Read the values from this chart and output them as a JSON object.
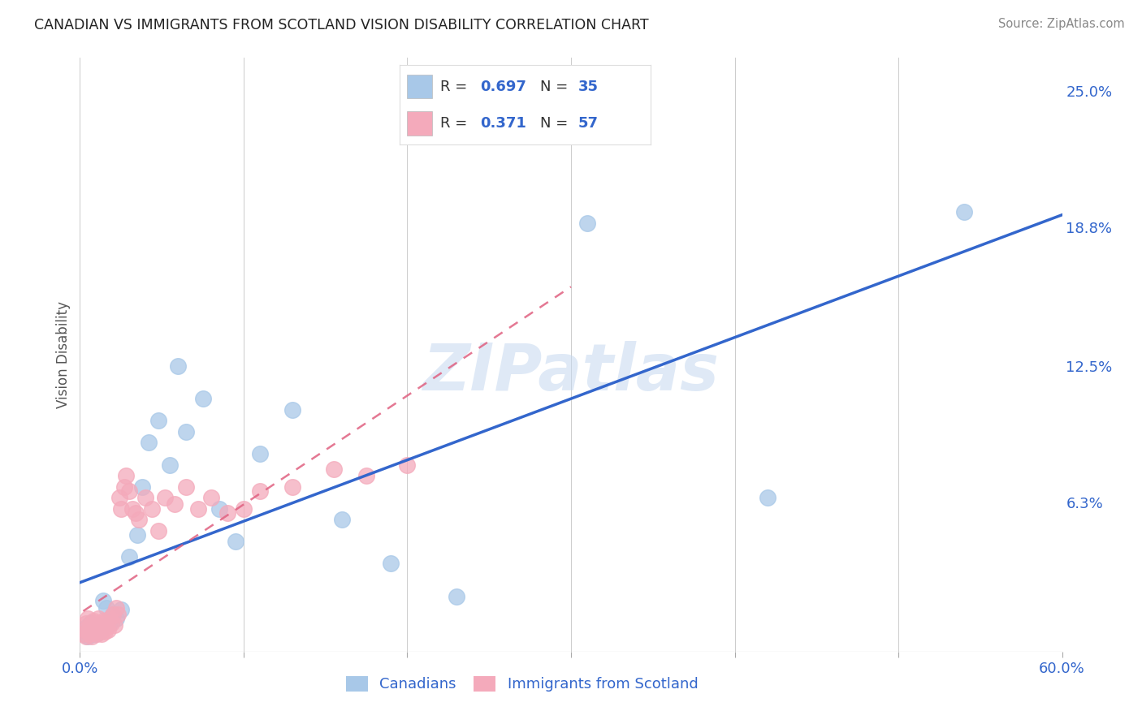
{
  "title": "CANADIAN VS IMMIGRANTS FROM SCOTLAND VISION DISABILITY CORRELATION CHART",
  "source": "Source: ZipAtlas.com",
  "ylabel": "Vision Disability",
  "watermark": "ZIPatlas",
  "xlim": [
    0.0,
    0.6
  ],
  "ylim": [
    -0.005,
    0.265
  ],
  "ytick_values": [
    0.0,
    0.063,
    0.125,
    0.188,
    0.25
  ],
  "ytick_labels": [
    "",
    "6.3%",
    "12.5%",
    "18.8%",
    "25.0%"
  ],
  "xtick_positions": [
    0.0,
    0.1,
    0.2,
    0.3,
    0.4,
    0.5,
    0.6
  ],
  "xticklabels": [
    "0.0%",
    "",
    "",
    "",
    "",
    "",
    "60.0%"
  ],
  "canadians_R": 0.697,
  "canadians_N": 35,
  "scotland_R": 0.371,
  "scotland_N": 57,
  "canadians_color": "#a8c8e8",
  "scotland_color": "#f4aabb",
  "canadians_line_color": "#3366cc",
  "scotland_line_color": "#e06080",
  "legend_text_color": "#3366cc",
  "canadians_x": [
    0.003,
    0.004,
    0.005,
    0.006,
    0.007,
    0.008,
    0.009,
    0.01,
    0.011,
    0.012,
    0.014,
    0.016,
    0.018,
    0.02,
    0.022,
    0.025,
    0.03,
    0.035,
    0.038,
    0.042,
    0.048,
    0.055,
    0.06,
    0.065,
    0.075,
    0.085,
    0.095,
    0.11,
    0.13,
    0.16,
    0.19,
    0.23,
    0.31,
    0.42,
    0.54
  ],
  "canadians_y": [
    0.003,
    0.006,
    0.002,
    0.008,
    0.004,
    0.005,
    0.003,
    0.007,
    0.005,
    0.004,
    0.018,
    0.015,
    0.008,
    0.012,
    0.01,
    0.014,
    0.038,
    0.048,
    0.07,
    0.09,
    0.1,
    0.08,
    0.125,
    0.095,
    0.11,
    0.06,
    0.045,
    0.085,
    0.105,
    0.055,
    0.035,
    0.02,
    0.19,
    0.065,
    0.195
  ],
  "scotland_x": [
    0.002,
    0.003,
    0.004,
    0.004,
    0.005,
    0.005,
    0.006,
    0.006,
    0.007,
    0.007,
    0.008,
    0.008,
    0.009,
    0.009,
    0.01,
    0.01,
    0.011,
    0.011,
    0.012,
    0.012,
    0.013,
    0.013,
    0.014,
    0.014,
    0.015,
    0.015,
    0.016,
    0.017,
    0.018,
    0.019,
    0.02,
    0.021,
    0.022,
    0.023,
    0.024,
    0.025,
    0.027,
    0.028,
    0.03,
    0.032,
    0.034,
    0.036,
    0.04,
    0.044,
    0.048,
    0.052,
    0.058,
    0.065,
    0.072,
    0.08,
    0.09,
    0.1,
    0.11,
    0.13,
    0.155,
    0.175,
    0.2
  ],
  "scotland_y": [
    0.003,
    0.005,
    0.002,
    0.008,
    0.004,
    0.01,
    0.003,
    0.007,
    0.005,
    0.002,
    0.006,
    0.009,
    0.004,
    0.008,
    0.003,
    0.007,
    0.005,
    0.01,
    0.004,
    0.008,
    0.003,
    0.006,
    0.005,
    0.009,
    0.004,
    0.008,
    0.006,
    0.005,
    0.01,
    0.008,
    0.012,
    0.007,
    0.015,
    0.012,
    0.065,
    0.06,
    0.07,
    0.075,
    0.068,
    0.06,
    0.058,
    0.055,
    0.065,
    0.06,
    0.05,
    0.065,
    0.062,
    0.07,
    0.06,
    0.065,
    0.058,
    0.06,
    0.068,
    0.07,
    0.078,
    0.075,
    0.08
  ],
  "bottom_legend_labels": [
    "Canadians",
    "Immigrants from Scotland"
  ]
}
